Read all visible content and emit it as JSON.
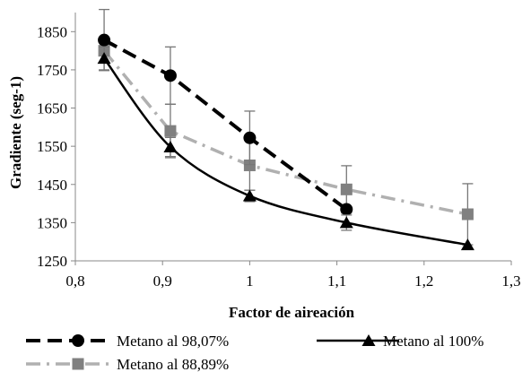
{
  "chart_data": {
    "type": "line",
    "title": "",
    "xlabel": "Factor de aireación",
    "ylabel": "Gradiente (seg-1)",
    "xlim": [
      0.8,
      1.3
    ],
    "ylim": [
      1250,
      1900
    ],
    "x_ticks": [
      0.8,
      0.9,
      1.0,
      1.1,
      1.2,
      1.3
    ],
    "x_tick_labels": [
      "0,8",
      "0,9",
      "1",
      "1,1",
      "1,2",
      "1,3"
    ],
    "y_ticks": [
      1250,
      1350,
      1450,
      1550,
      1650,
      1750,
      1850
    ],
    "y_tick_labels": [
      "1250",
      "1350",
      "1450",
      "1550",
      "1650",
      "1750",
      "1850"
    ],
    "grid": false,
    "legend_position": "bottom",
    "series": [
      {
        "name": "Metano al 98,07%",
        "color": "#000000",
        "line_style": "dashed",
        "marker": "circle",
        "smooth": false,
        "x": [
          0.833,
          0.909,
          1.0,
          1.111
        ],
        "y": [
          1828,
          1735,
          1572,
          1385
        ],
        "error": [
          80,
          75,
          70,
          0
        ]
      },
      {
        "name": "Metano al 100%",
        "color": "#000000",
        "line_style": "solid",
        "marker": "triangle",
        "smooth": true,
        "x": [
          0.833,
          0.909,
          1.0,
          1.111,
          1.25
        ],
        "y": [
          1780,
          1548,
          1420,
          1350,
          1292
        ],
        "error": [
          30,
          25,
          15,
          20,
          0
        ]
      },
      {
        "name": "Metano al 88,89%",
        "color": "#b0b0b0",
        "marker_color": "#808080",
        "line_style": "dashdot",
        "marker": "square",
        "smooth": false,
        "x": [
          0.833,
          0.909,
          1.0,
          1.111,
          1.25
        ],
        "y": [
          1800,
          1590,
          1500,
          1437,
          1372
        ],
        "error": [
          0,
          70,
          65,
          62,
          80
        ]
      }
    ]
  }
}
